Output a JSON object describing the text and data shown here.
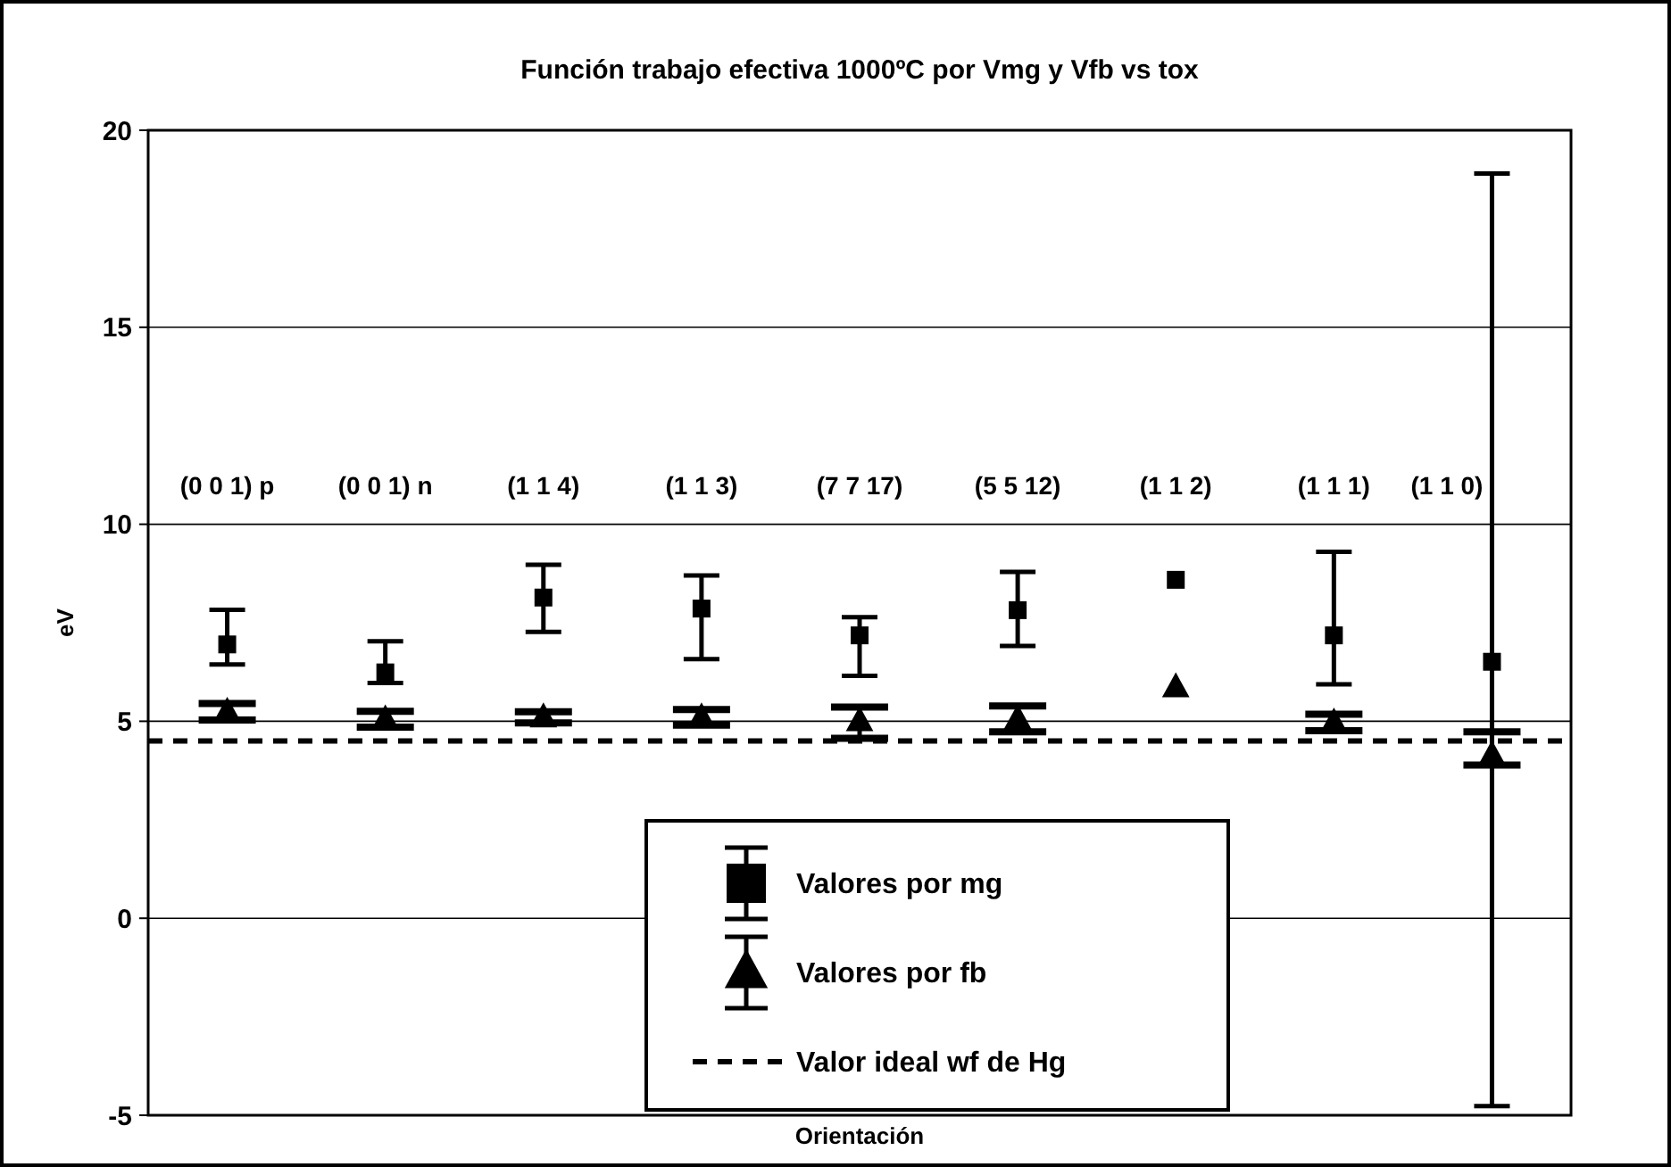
{
  "chart_data": {
    "type": "scatter",
    "title": "Función trabajo efectiva  1000ºC por Vmg y Vfb vs tox",
    "xlabel": "Orientación",
    "ylabel": "eV",
    "categories": [
      "(0 0 1) p",
      "(0 0 1) n",
      "(1 1 4)",
      "(1 1 3)",
      "(7 7 17)",
      "(5 5 12)",
      "(1 1 2)",
      "(1 1 1)",
      "(1 1 0)"
    ],
    "series": [
      {
        "name": "Valores por mg",
        "color": "#000000",
        "marker": "square",
        "values": [
          6.95,
          6.24,
          8.14,
          7.86,
          7.18,
          7.82,
          8.59,
          7.18,
          6.51
        ],
        "errors": [
          [
            6.44,
            7.83
          ],
          [
            5.97,
            7.03
          ],
          [
            7.27,
            8.97
          ],
          [
            6.58,
            8.7
          ],
          [
            6.15,
            7.64
          ],
          [
            6.91,
            8.79
          ],
          null,
          [
            5.94,
            9.3
          ],
          [
            -4.77,
            18.9
          ]
        ]
      },
      {
        "name": "Valores por fb",
        "color": "#000000",
        "marker": "triangle",
        "values": [
          5.24,
          5.05,
          5.1,
          5.1,
          5.0,
          5.06,
          5.86,
          4.97,
          4.14
        ],
        "errors": [
          [
            5.03,
            5.45
          ],
          [
            4.85,
            5.25
          ],
          [
            4.96,
            5.24
          ],
          [
            4.9,
            5.3
          ],
          [
            4.57,
            5.36
          ],
          [
            4.73,
            5.39
          ],
          null,
          [
            4.76,
            5.18
          ],
          [
            3.89,
            4.73
          ]
        ]
      }
    ],
    "ref_lines": [
      {
        "axis": "y",
        "value": 4.5,
        "label": "Valor ideal wf de Hg",
        "color": "#000000",
        "line_style": "dashed"
      }
    ],
    "ylim": [
      -5,
      20
    ],
    "yticks": [
      -5,
      0,
      5,
      10,
      15,
      20
    ],
    "grid": "y",
    "legend": "bottom",
    "tick_labels": "y"
  }
}
